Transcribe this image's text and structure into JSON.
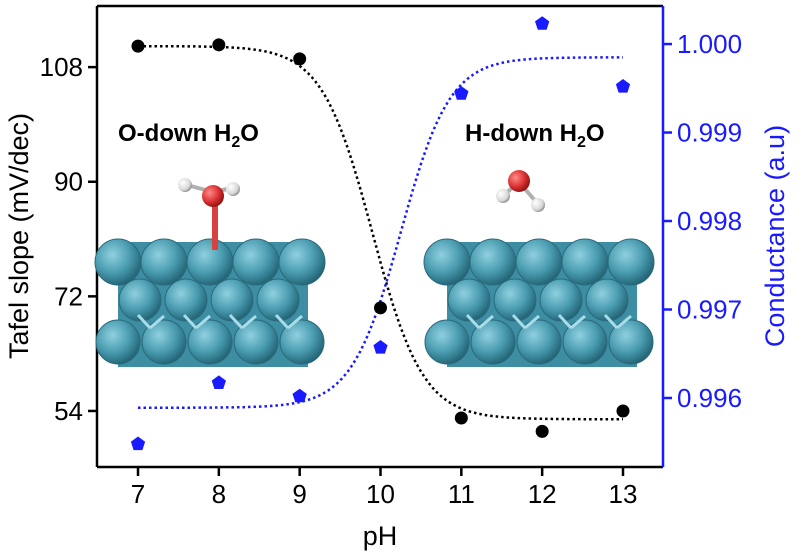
{
  "chart_data": {
    "type": "scatter",
    "xlabel": "pH",
    "ylabel_left": "Tafel slope (mV/dec)",
    "ylabel_right": "Conductance (a.u)",
    "x_ticks": [
      7,
      8,
      9,
      10,
      11,
      12,
      13
    ],
    "x_tick_labels": [
      "7",
      "8",
      "9",
      "10",
      "11",
      "12",
      "13"
    ],
    "xlim": [
      6.55,
      13.55
    ],
    "left_axis": {
      "ylim": [
        45.2,
        117.6
      ],
      "ticks": [
        54,
        72,
        90,
        108
      ],
      "tick_labels": [
        "54",
        "72",
        "90",
        "108"
      ],
      "color": "#000000"
    },
    "right_axis": {
      "ylim": [
        0.99522,
        1.00043
      ],
      "ticks": [
        0.996,
        0.997,
        0.998,
        0.999,
        1.0
      ],
      "tick_labels": [
        "0.996",
        "0.997",
        "0.998",
        "0.999",
        "1.000"
      ],
      "color": "#1a1aff"
    },
    "series": [
      {
        "axis": "left",
        "marker": "circle",
        "color": "#000000",
        "x": [
          7,
          8,
          9,
          10,
          11,
          12,
          13
        ],
        "y": [
          111.3,
          111.5,
          109.3,
          70.2,
          52.9,
          50.8,
          54.0
        ],
        "fit": {
          "kind": "sigmoid",
          "top": 111.3,
          "bottom": 52.7,
          "x0": 9.9,
          "k": 3.2
        }
      },
      {
        "axis": "right",
        "marker": "pentagon",
        "color": "#1a1aff",
        "x": [
          7,
          8,
          9,
          10,
          11,
          12,
          13
        ],
        "y": [
          0.99548,
          0.99617,
          0.99602,
          0.99657,
          0.99944,
          1.00023,
          0.99952
        ],
        "fit": {
          "kind": "sigmoid",
          "bottom": 0.99589,
          "top": 0.99985,
          "x0": 10.25,
          "k": 3.3
        }
      }
    ],
    "annotations": [
      {
        "text": "O-down H",
        "sub": "2",
        "tail": "O"
      },
      {
        "text": "H-down H",
        "sub": "2",
        "tail": "O"
      }
    ]
  }
}
